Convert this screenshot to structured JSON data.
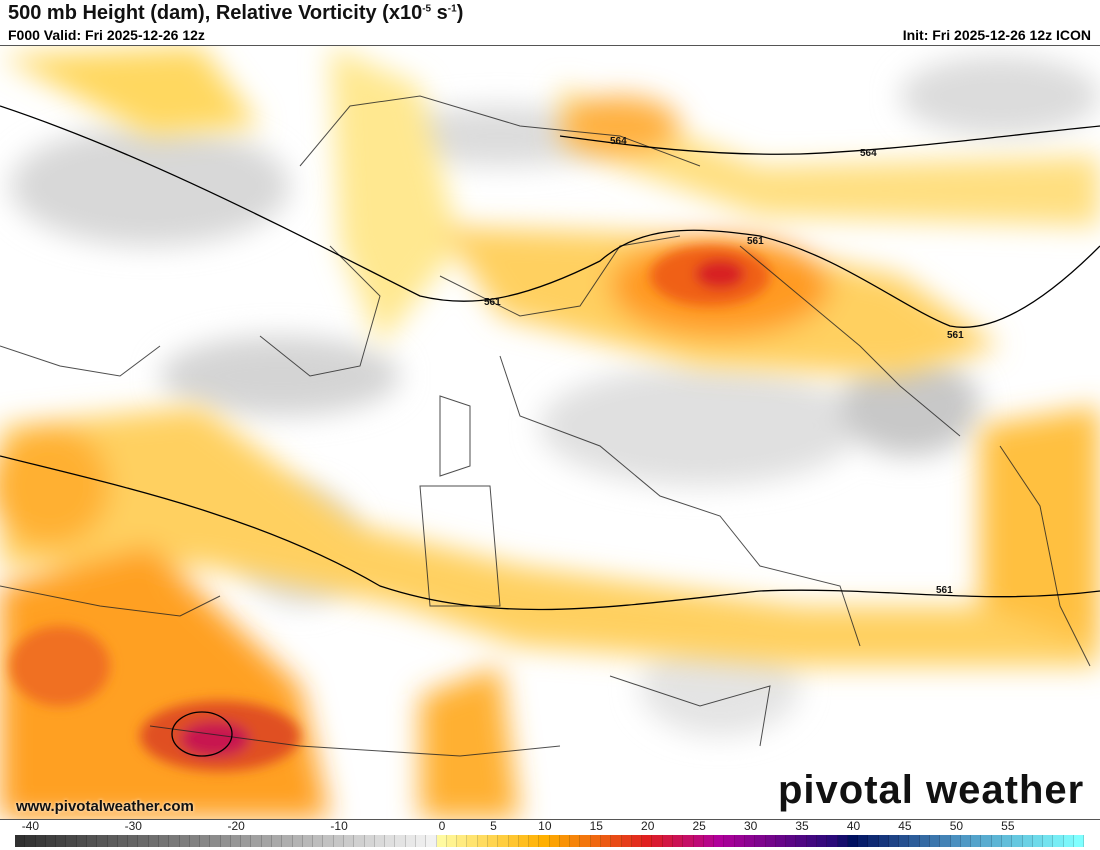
{
  "header": {
    "title": "500 mb Height (dam), Relative Vorticity (x10",
    "title_exp1": "-5",
    "title_unit": " s",
    "title_exp2": "-1",
    "title_end": ")",
    "valid": "F000 Valid: Fri 2025-12-26 12z",
    "init": "Init: Fri 2025-12-26 12z ICON"
  },
  "map": {
    "contour_labels": [
      "564",
      "564",
      "561",
      "561",
      "561",
      "561"
    ]
  },
  "branding": {
    "site": "www.pivotalweather.com",
    "logo": "pivotal weather"
  },
  "colorbar": {
    "ticks": [
      "-40",
      "-30",
      "-20",
      "-10",
      "0",
      "5",
      "10",
      "15",
      "20",
      "25",
      "30",
      "35",
      "40",
      "45",
      "50",
      "55"
    ],
    "range": [
      -41,
      62
    ],
    "stops": [
      [
        -41,
        "#303030"
      ],
      [
        -1,
        "#f2f2f2"
      ],
      [
        0,
        "#fffaa0"
      ],
      [
        10,
        "#ffb000"
      ],
      [
        20,
        "#e02020"
      ],
      [
        27,
        "#b0009a"
      ],
      [
        38,
        "#2a0a7a"
      ],
      [
        40,
        "#001060"
      ],
      [
        50,
        "#4a90c0"
      ],
      [
        62,
        "#80ffff"
      ]
    ]
  }
}
